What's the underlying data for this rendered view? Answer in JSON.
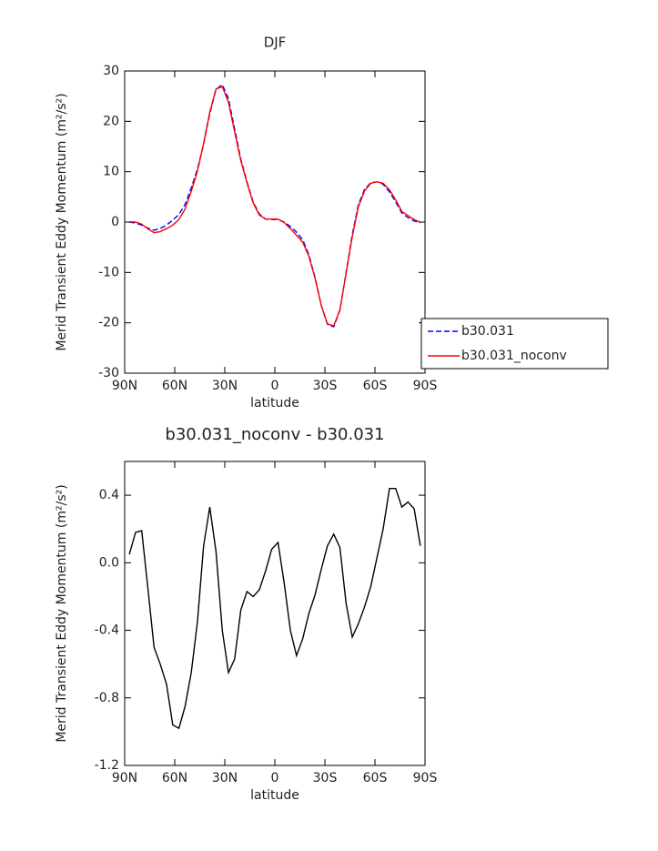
{
  "chart_data": [
    {
      "type": "line",
      "title": "DJF",
      "xlabel": "latitude",
      "ylabel": "Merid Transient Eddy Momentum (m²/s²)",
      "x": [
        87.2,
        83.5,
        79.8,
        76.1,
        72.4,
        68.7,
        64.9,
        61.2,
        57.5,
        53.8,
        50.1,
        46.4,
        42.7,
        39.0,
        35.3,
        31.5,
        27.8,
        24.1,
        20.4,
        16.7,
        13.0,
        9.3,
        5.6,
        1.9,
        -1.9,
        -5.6,
        -9.3,
        -13.0,
        -16.7,
        -20.4,
        -24.1,
        -27.8,
        -31.5,
        -35.3,
        -39.0,
        -42.7,
        -46.4,
        -50.1,
        -53.8,
        -57.5,
        -61.2,
        -64.9,
        -68.7,
        -72.4,
        -76.1,
        -79.8,
        -83.5,
        -87.2
      ],
      "series": [
        {
          "name": "b30.031",
          "color": "#0000ff",
          "dash": "dashed",
          "values": [
            0.0,
            -0.2,
            -0.6,
            -1.2,
            -1.6,
            -1.3,
            -0.6,
            0.4,
            1.5,
            3.5,
            6.8,
            10.5,
            15.5,
            21.5,
            26.3,
            27.3,
            24.5,
            18.5,
            12.5,
            8.0,
            4.0,
            1.6,
            0.6,
            0.5,
            0.5,
            0.0,
            -0.9,
            -2.0,
            -3.5,
            -6.5,
            -11.0,
            -16.5,
            -20.3,
            -20.8,
            -17.5,
            -10.0,
            -2.5,
            3.5,
            6.5,
            7.8,
            8.0,
            7.5,
            6.0,
            4.0,
            1.8,
            0.9,
            0.2,
            -0.1
          ]
        },
        {
          "name": "b30.031_noconv",
          "color": "#ff0000",
          "dash": "solid",
          "values": [
            0.05,
            0.0,
            -0.4,
            -1.35,
            -2.1,
            -1.9,
            -1.3,
            -0.6,
            0.5,
            2.6,
            6.1,
            10.1,
            15.6,
            21.8,
            26.4,
            26.9,
            23.8,
            17.9,
            12.2,
            7.8,
            3.8,
            1.4,
            0.6,
            0.6,
            0.6,
            -0.1,
            -1.3,
            -2.6,
            -4.0,
            -6.8,
            -11.2,
            -16.5,
            -20.2,
            -20.6,
            -17.4,
            -10.2,
            -2.9,
            3.1,
            6.2,
            7.7,
            8.0,
            7.7,
            6.4,
            4.4,
            2.1,
            1.3,
            0.5,
            0.0
          ]
        }
      ],
      "xlim": [
        90,
        -90
      ],
      "ylim": [
        -30,
        30
      ],
      "xticks": [
        {
          "value": 90,
          "label": "90N"
        },
        {
          "value": 60,
          "label": "60N"
        },
        {
          "value": 30,
          "label": "30N"
        },
        0,
        {
          "value": -30,
          "label": "30S"
        },
        {
          "value": -60,
          "label": "60S"
        },
        {
          "value": -90,
          "label": "90S"
        }
      ],
      "yticks": [
        -30,
        -20,
        -10,
        0,
        10,
        20,
        30
      ],
      "legend": "right"
    },
    {
      "type": "line",
      "title": "b30.031_noconv - b30.031",
      "xlabel": "latitude",
      "ylabel": "Merid Transient Eddy Momentum (m²/s²)",
      "x": [
        87.2,
        83.5,
        79.8,
        76.1,
        72.4,
        68.7,
        64.9,
        61.2,
        57.5,
        53.8,
        50.1,
        46.4,
        42.7,
        39.0,
        35.3,
        31.5,
        27.8,
        24.1,
        20.4,
        16.7,
        13.0,
        9.3,
        5.6,
        1.9,
        -1.9,
        -5.6,
        -9.3,
        -13.0,
        -16.7,
        -20.4,
        -24.1,
        -27.8,
        -31.5,
        -35.3,
        -39.0,
        -42.7,
        -46.4,
        -50.1,
        -53.8,
        -57.5,
        -61.2,
        -64.9,
        -68.7,
        -72.4,
        -76.1,
        -79.8,
        -83.5,
        -87.2
      ],
      "values": [
        0.05,
        0.18,
        0.19,
        -0.15,
        -0.5,
        -0.6,
        -0.72,
        -0.96,
        -0.98,
        -0.85,
        -0.65,
        -0.35,
        0.1,
        0.33,
        0.07,
        -0.4,
        -0.65,
        -0.57,
        -0.28,
        -0.17,
        -0.2,
        -0.16,
        -0.05,
        0.08,
        0.12,
        -0.12,
        -0.4,
        -0.55,
        -0.45,
        -0.3,
        -0.19,
        -0.04,
        0.1,
        0.17,
        0.09,
        -0.24,
        -0.44,
        -0.36,
        -0.26,
        -0.14,
        0.03,
        0.2,
        0.44,
        0.44,
        0.33,
        0.36,
        0.32,
        0.1
      ],
      "color": "#000000",
      "xlim": [
        90,
        -90
      ],
      "ylim": [
        -1.2,
        0.6
      ],
      "xticks": [
        {
          "value": 90,
          "label": "90N"
        },
        {
          "value": 60,
          "label": "60N"
        },
        {
          "value": 30,
          "label": "30N"
        },
        0,
        {
          "value": -30,
          "label": "30S"
        },
        {
          "value": -60,
          "label": "60S"
        },
        {
          "value": -90,
          "label": "90S"
        }
      ],
      "yticks": [
        -1.2,
        -0.8,
        -0.4,
        {
          "value": 0,
          "label": "0.0"
        },
        0.4
      ]
    }
  ]
}
